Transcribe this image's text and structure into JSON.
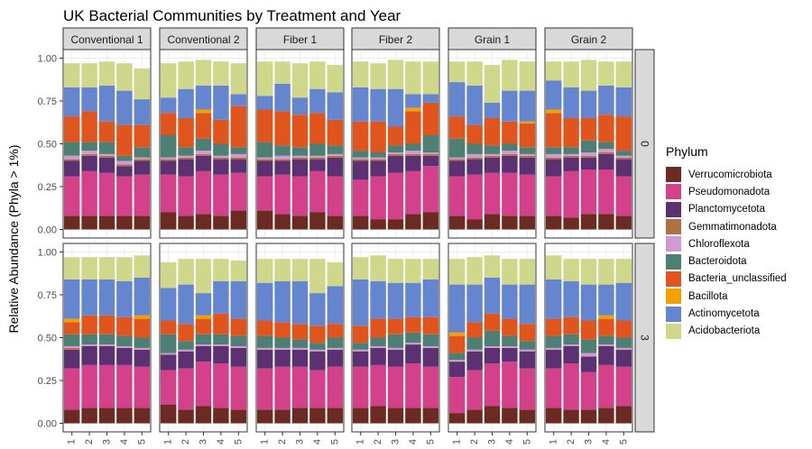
{
  "chart_data": {
    "type": "stacked-bar-faceted",
    "title": "UK Bacterial Communities by Treatment and Year",
    "ylabel": "Relative Abundance (Phyla > 1%)",
    "xlabel": "",
    "ylim": [
      0,
      1
    ],
    "yticks": [
      "0.00",
      "0.25",
      "0.50",
      "0.75",
      "1.00"
    ],
    "yticks_values": [
      0,
      0.25,
      0.5,
      0.75,
      1.0
    ],
    "categories": [
      "1",
      "2",
      "3",
      "4",
      "5"
    ],
    "treatments": [
      "Conventional 1",
      "Conventional 2",
      "Fiber 1",
      "Fiber 2",
      "Grain 1",
      "Grain 2"
    ],
    "years": [
      "0",
      "3"
    ],
    "legend_title": "Phylum",
    "legend_position": "right",
    "grid": true,
    "phyla": [
      {
        "name": "Verrucomicrobiota",
        "color": "#6b2a22"
      },
      {
        "name": "Pseudomonadota",
        "color": "#d4418b"
      },
      {
        "name": "Planctomycetota",
        "color": "#5c3172"
      },
      {
        "name": "Gemmatimonadota",
        "color": "#b07040"
      },
      {
        "name": "Chloroflexota",
        "color": "#d09ad0"
      },
      {
        "name": "Bacteroidota",
        "color": "#4d7f74"
      },
      {
        "name": "Bacteria_unclassified",
        "color": "#e0541e"
      },
      {
        "name": "Bacillota",
        "color": "#f2a100"
      },
      {
        "name": "Actinomycetota",
        "color": "#6585cf"
      },
      {
        "name": "Acidobacteriota",
        "color": "#cfd78b"
      }
    ],
    "facets": [
      {
        "treatment": "Conventional 1",
        "year": "0",
        "bars": [
          [
            0.08,
            0.23,
            0.09,
            0.01,
            0.02,
            0.08,
            0.15,
            0,
            0.17,
            0.14
          ],
          [
            0.08,
            0.26,
            0.09,
            0.01,
            0.02,
            0.05,
            0.18,
            0,
            0.14,
            0.14
          ],
          [
            0.08,
            0.25,
            0.09,
            0.01,
            0.01,
            0.07,
            0.12,
            0,
            0.21,
            0.14
          ],
          [
            0.08,
            0.23,
            0.06,
            0.01,
            0.02,
            0.03,
            0.18,
            0,
            0.2,
            0.16
          ],
          [
            0.08,
            0.24,
            0.08,
            0.01,
            0.01,
            0.06,
            0.13,
            0,
            0.15,
            0.18
          ]
        ]
      },
      {
        "treatment": "Conventional 2",
        "year": "0",
        "bars": [
          [
            0.1,
            0.22,
            0.08,
            0.01,
            0.01,
            0.13,
            0.13,
            0,
            0.09,
            0.2
          ],
          [
            0.08,
            0.23,
            0.1,
            0.01,
            0.01,
            0.05,
            0.17,
            0,
            0.17,
            0.16
          ],
          [
            0.09,
            0.25,
            0.09,
            0.01,
            0.02,
            0.07,
            0.15,
            0.02,
            0.14,
            0.15
          ],
          [
            0.08,
            0.24,
            0.09,
            0.01,
            0.01,
            0.07,
            0.14,
            0,
            0.2,
            0.14
          ],
          [
            0.11,
            0.22,
            0.08,
            0.01,
            0.02,
            0.04,
            0.24,
            0,
            0.07,
            0.18
          ]
        ]
      },
      {
        "treatment": "Fiber 1",
        "year": "0",
        "bars": [
          [
            0.11,
            0.2,
            0.09,
            0.01,
            0.01,
            0.09,
            0.19,
            0,
            0.08,
            0.2
          ],
          [
            0.09,
            0.23,
            0.08,
            0.01,
            0.02,
            0.06,
            0.2,
            0,
            0.16,
            0.13
          ],
          [
            0.08,
            0.23,
            0.1,
            0.01,
            0.01,
            0.05,
            0.19,
            0,
            0.1,
            0.2
          ],
          [
            0.1,
            0.24,
            0.07,
            0.01,
            0.01,
            0.07,
            0.18,
            0,
            0.14,
            0.16
          ],
          [
            0.08,
            0.23,
            0.11,
            0.01,
            0.01,
            0.05,
            0.15,
            0,
            0.16,
            0.16
          ]
        ]
      },
      {
        "treatment": "Fiber 2",
        "year": "0",
        "bars": [
          [
            0.08,
            0.21,
            0.11,
            0.01,
            0.01,
            0.04,
            0.17,
            0,
            0.2,
            0.15
          ],
          [
            0.06,
            0.25,
            0.09,
            0.01,
            0.01,
            0.03,
            0.18,
            0,
            0.19,
            0.15
          ],
          [
            0.06,
            0.27,
            0.1,
            0.01,
            0.01,
            0.04,
            0.11,
            0,
            0.22,
            0.17
          ],
          [
            0.09,
            0.25,
            0.09,
            0.01,
            0.02,
            0.04,
            0.19,
            0.02,
            0.08,
            0.19
          ],
          [
            0.1,
            0.27,
            0.06,
            0.01,
            0.01,
            0.1,
            0.19,
            0,
            0.05,
            0.19
          ]
        ]
      },
      {
        "treatment": "Grain 1",
        "year": "0",
        "bars": [
          [
            0.08,
            0.23,
            0.09,
            0.01,
            0.01,
            0.11,
            0.13,
            0,
            0.2,
            0.12
          ],
          [
            0.06,
            0.26,
            0.09,
            0.01,
            0.02,
            0.06,
            0.11,
            0,
            0.23,
            0.14
          ],
          [
            0.09,
            0.24,
            0.09,
            0.01,
            0.01,
            0.05,
            0.16,
            0,
            0.09,
            0.22
          ],
          [
            0.08,
            0.25,
            0.1,
            0.01,
            0.02,
            0.04,
            0.13,
            0,
            0.18,
            0.18
          ],
          [
            0.08,
            0.24,
            0.1,
            0.01,
            0.01,
            0.04,
            0.14,
            0.01,
            0.18,
            0.17
          ]
        ]
      },
      {
        "treatment": "Grain 2",
        "year": "0",
        "bars": [
          [
            0.08,
            0.23,
            0.1,
            0.01,
            0.02,
            0.04,
            0.2,
            0.02,
            0.17,
            0.11
          ],
          [
            0.07,
            0.27,
            0.08,
            0.01,
            0.01,
            0.04,
            0.17,
            0,
            0.18,
            0.15
          ],
          [
            0.09,
            0.26,
            0.07,
            0.01,
            0.02,
            0.07,
            0.13,
            0,
            0.16,
            0.18
          ],
          [
            0.09,
            0.26,
            0.09,
            0.01,
            0.02,
            0.04,
            0.16,
            0,
            0.17,
            0.14
          ],
          [
            0.08,
            0.23,
            0.1,
            0.01,
            0.01,
            0.03,
            0.2,
            0,
            0.17,
            0.15
          ]
        ]
      },
      {
        "treatment": "Conventional 1",
        "year": "3",
        "bars": [
          [
            0.08,
            0.24,
            0.11,
            0.01,
            0.01,
            0.07,
            0.07,
            0.02,
            0.23,
            0.13
          ],
          [
            0.09,
            0.25,
            0.11,
            0,
            0.01,
            0.06,
            0.11,
            0,
            0.21,
            0.13
          ],
          [
            0.09,
            0.25,
            0.11,
            0,
            0.01,
            0.06,
            0.11,
            0,
            0.21,
            0.13
          ],
          [
            0.09,
            0.25,
            0.1,
            0,
            0.01,
            0.06,
            0.11,
            0,
            0.21,
            0.14
          ],
          [
            0.09,
            0.24,
            0.1,
            0,
            0.01,
            0.06,
            0.11,
            0.02,
            0.22,
            0.13
          ]
        ]
      },
      {
        "treatment": "Conventional 2",
        "year": "3",
        "bars": [
          [
            0.11,
            0.2,
            0.09,
            0,
            0.01,
            0.11,
            0.08,
            0,
            0.19,
            0.15
          ],
          [
            0.08,
            0.24,
            0.1,
            0,
            0.01,
            0.05,
            0.1,
            0,
            0.23,
            0.15
          ],
          [
            0.1,
            0.26,
            0.09,
            0,
            0.01,
            0.06,
            0.09,
            0.02,
            0.13,
            0.2
          ],
          [
            0.09,
            0.26,
            0.1,
            0,
            0.01,
            0.06,
            0.12,
            0,
            0.19,
            0.13
          ],
          [
            0.08,
            0.25,
            0.11,
            0,
            0.01,
            0.06,
            0.1,
            0,
            0.22,
            0.12
          ]
        ]
      },
      {
        "treatment": "Fiber 1",
        "year": "3",
        "bars": [
          [
            0.08,
            0.24,
            0.11,
            0,
            0.01,
            0.07,
            0.09,
            0,
            0.22,
            0.14
          ],
          [
            0.08,
            0.25,
            0.1,
            0,
            0.01,
            0.06,
            0.09,
            0,
            0.24,
            0.13
          ],
          [
            0.09,
            0.24,
            0.1,
            0,
            0.01,
            0.05,
            0.09,
            0,
            0.25,
            0.13
          ],
          [
            0.09,
            0.22,
            0.11,
            0,
            0.01,
            0.04,
            0.1,
            0,
            0.19,
            0.2
          ],
          [
            0.09,
            0.24,
            0.1,
            0,
            0.01,
            0.06,
            0.08,
            0,
            0.22,
            0.14
          ]
        ]
      },
      {
        "treatment": "Fiber 2",
        "year": "3",
        "bars": [
          [
            0.09,
            0.24,
            0.09,
            0,
            0.01,
            0.04,
            0.1,
            0,
            0.27,
            0.13
          ],
          [
            0.1,
            0.24,
            0.1,
            0,
            0.01,
            0.05,
            0.11,
            0,
            0.22,
            0.15
          ],
          [
            0.09,
            0.24,
            0.1,
            0,
            0.01,
            0.08,
            0.09,
            0,
            0.21,
            0.14
          ],
          [
            0.09,
            0.26,
            0.11,
            0,
            0.01,
            0.06,
            0.09,
            0,
            0.2,
            0.14
          ],
          [
            0.09,
            0.24,
            0.11,
            0,
            0.01,
            0.07,
            0.1,
            0,
            0.22,
            0.12
          ]
        ]
      },
      {
        "treatment": "Grain 1",
        "year": "3",
        "bars": [
          [
            0.06,
            0.21,
            0.09,
            0,
            0.01,
            0.04,
            0.1,
            0.02,
            0.28,
            0.15
          ],
          [
            0.08,
            0.23,
            0.11,
            0,
            0.01,
            0.07,
            0.09,
            0,
            0.22,
            0.16
          ],
          [
            0.1,
            0.25,
            0.09,
            0,
            0.01,
            0.09,
            0.1,
            0,
            0.21,
            0.13
          ],
          [
            0.09,
            0.27,
            0.08,
            0,
            0.01,
            0.06,
            0.1,
            0,
            0.2,
            0.15
          ],
          [
            0.08,
            0.24,
            0.1,
            0,
            0.01,
            0.05,
            0.1,
            0,
            0.23,
            0.15
          ]
        ]
      },
      {
        "treatment": "Grain 2",
        "year": "3",
        "bars": [
          [
            0.09,
            0.23,
            0.11,
            0,
            0.01,
            0.07,
            0.1,
            0,
            0.23,
            0.14
          ],
          [
            0.08,
            0.27,
            0.1,
            0,
            0.01,
            0.06,
            0.1,
            0,
            0.21,
            0.13
          ],
          [
            0.08,
            0.22,
            0.09,
            0,
            0.02,
            0.08,
            0.11,
            0,
            0.21,
            0.15
          ],
          [
            0.09,
            0.25,
            0.11,
            0,
            0.01,
            0.05,
            0.1,
            0.02,
            0.18,
            0.15
          ],
          [
            0.1,
            0.23,
            0.1,
            0,
            0.01,
            0.06,
            0.1,
            0,
            0.22,
            0.14
          ]
        ]
      }
    ]
  }
}
